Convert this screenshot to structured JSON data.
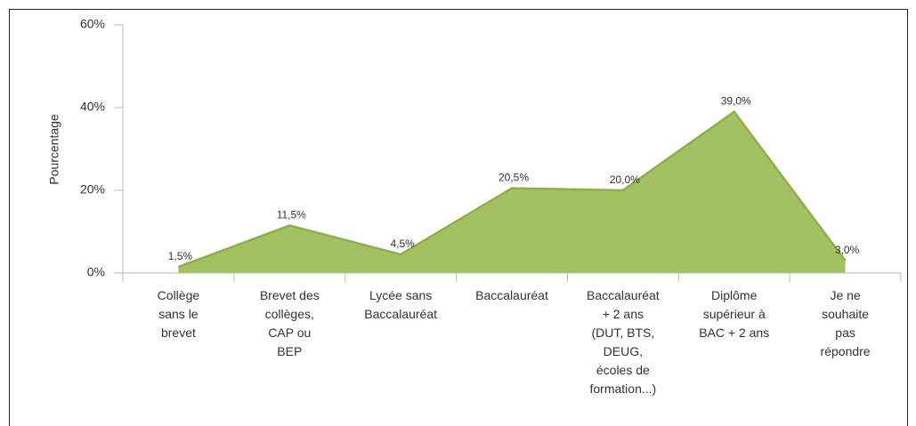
{
  "chart_data": {
    "type": "area",
    "y_label": "Pourcentage",
    "categories": [
      "Collège\nsans le\nbrevet",
      "Brevet des\ncollèges,\nCAP ou\nBEP",
      "Lycée sans\nBaccalauréat",
      "Baccalauréat",
      "Baccalauréat\n+ 2 ans\n(DUT, BTS,\nDEUG,\nécoles de\nformation...)",
      "Diplôme\nsupérieur à\nBAC + 2 ans",
      "Je ne\nsouhaite\npas\nrépondre"
    ],
    "values": [
      1.5,
      11.5,
      4.5,
      20.5,
      20.0,
      39.0,
      3.0
    ],
    "value_labels": [
      "1,5%",
      "11,5%",
      "4,5%",
      "20,5%",
      "20,0%",
      "39,0%",
      "3,0%"
    ],
    "color": "#a3c163",
    "line_color": "#8cb33c",
    "ylim": [
      0,
      60
    ],
    "yticks": [
      {
        "value": 0,
        "label": "0%"
      },
      {
        "value": 20,
        "label": "20%"
      },
      {
        "value": 40,
        "label": "40%"
      },
      {
        "value": 60,
        "label": "60%"
      }
    ]
  }
}
